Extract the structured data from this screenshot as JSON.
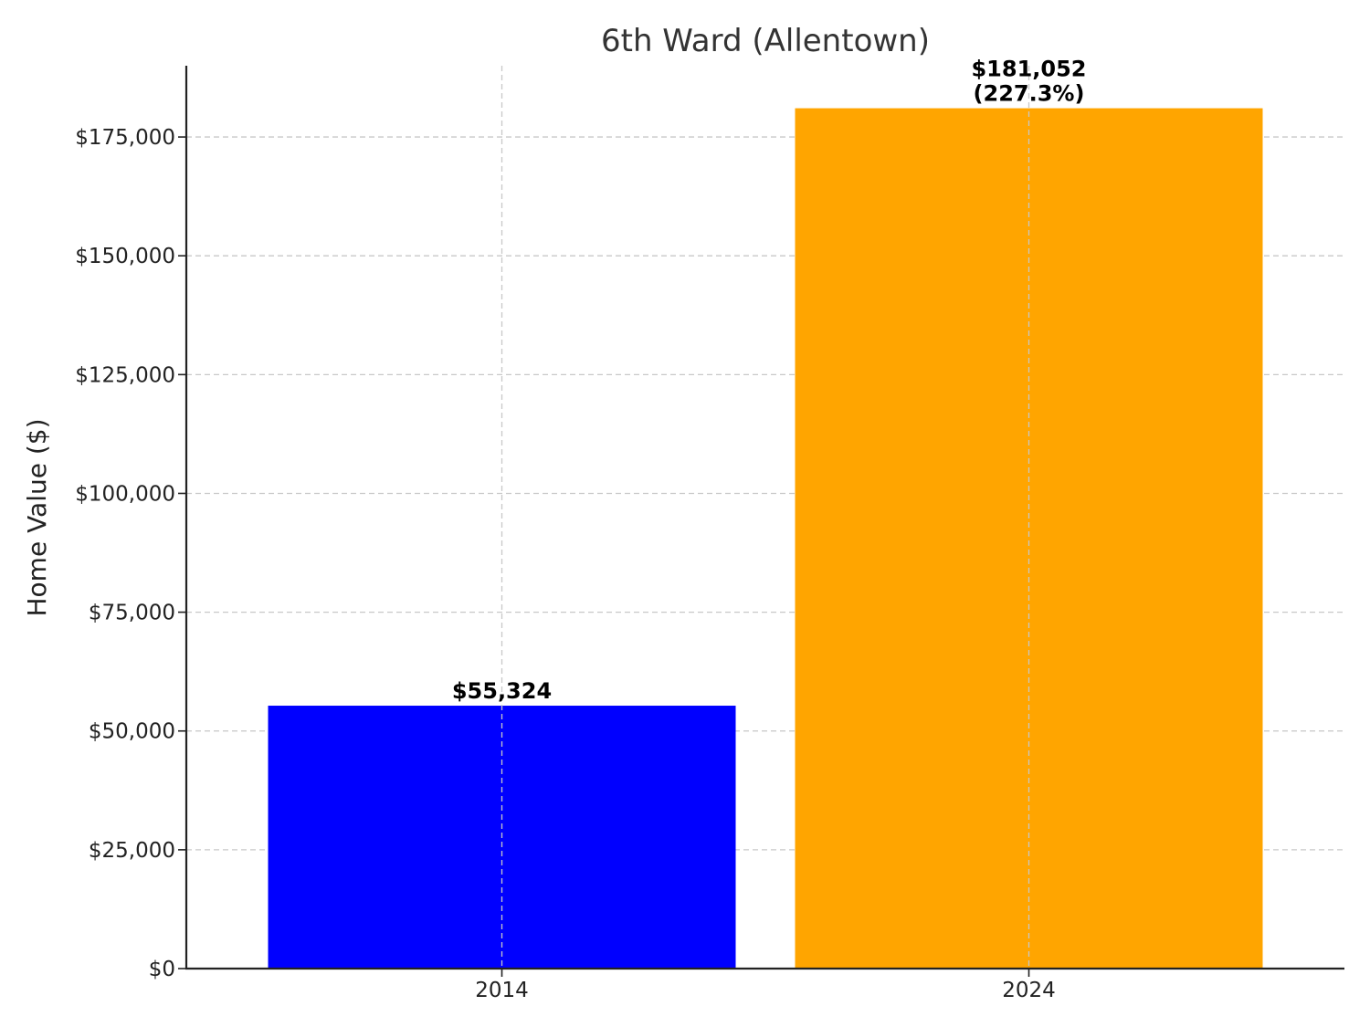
{
  "chart_data": {
    "type": "bar",
    "title": "6th Ward (Allentown)",
    "xlabel": "",
    "ylabel": "Home Value ($)",
    "categories": [
      "2014",
      "2024"
    ],
    "values": [
      55324,
      181052
    ],
    "colors": [
      "#0000ff",
      "#ffa500"
    ],
    "data_labels": [
      [
        "$55,324"
      ],
      [
        "$181,052",
        "(227.3%)"
      ]
    ],
    "ylim": [
      0,
      190000
    ],
    "yticks": [
      0,
      25000,
      50000,
      75000,
      100000,
      125000,
      150000,
      175000
    ],
    "ytick_labels": [
      "$0",
      "$25,000",
      "$50,000",
      "$75,000",
      "$100,000",
      "$125,000",
      "$150,000",
      "$175,000"
    ],
    "grid": true,
    "legend": "none"
  }
}
